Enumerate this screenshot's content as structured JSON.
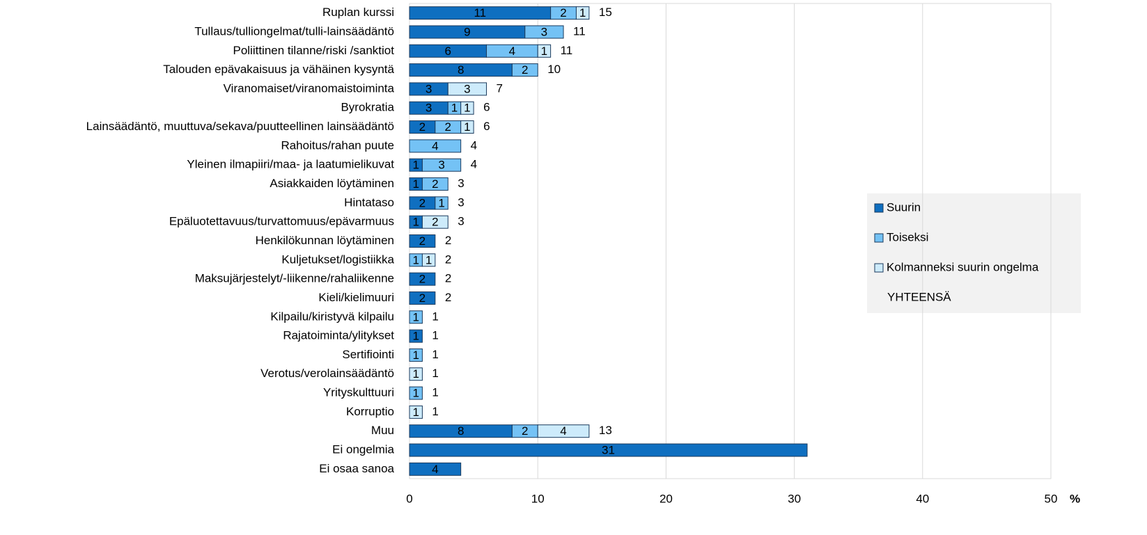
{
  "chart_data": {
    "type": "stacked-bar-horizontal",
    "categories": [
      "Ruplan kurssi",
      "Tullaus/tulliongelmat/tulli-lainsäädäntö",
      "Poliittinen tilanne/riski /sanktiot",
      "Talouden epävakaisuus ja vähäinen kysyntä",
      "Viranomaiset/viranomaistoiminta",
      "Byrokratia",
      "Lainsäädäntö, muuttuva/sekava/puutteellinen lainsäädäntö",
      "Rahoitus/rahan puute",
      "Yleinen ilmapiiri/maa- ja laatumielikuvat",
      "Asiakkaiden löytäminen",
      "Hintataso",
      "Epäluotettavuus/turvattomuus/epävarmuus",
      "Henkilökunnan löytäminen",
      "Kuljetukset/logistiikka",
      "Maksujärjestelyt/-liikenne/rahaliikenne",
      "Kieli/kielimuuri",
      "Kilpailu/kiristyvä kilpailu",
      "Rajatoiminta/ylitykset",
      "Sertifiointi",
      "Verotus/verolainsäädäntö",
      "Yrityskulttuuri",
      "Korruptio",
      "Muu",
      "Ei ongelmia",
      "Ei osaa sanoa"
    ],
    "series": [
      {
        "name": "Suurin",
        "color": "#0f6fc0",
        "values": [
          11,
          9,
          6,
          8,
          3,
          3,
          2,
          null,
          1,
          1,
          2,
          1,
          2,
          null,
          2,
          2,
          null,
          1,
          null,
          null,
          null,
          null,
          8,
          31,
          4
        ]
      },
      {
        "name": "Toiseksi",
        "color": "#74c2f5",
        "values": [
          2,
          3,
          4,
          2,
          null,
          1,
          2,
          4,
          3,
          2,
          1,
          null,
          null,
          1,
          null,
          null,
          1,
          null,
          1,
          null,
          1,
          null,
          2,
          null,
          null
        ]
      },
      {
        "name": "Kolmanneksi suurin ongelma",
        "color": "#cdebfb",
        "values": [
          1,
          null,
          1,
          null,
          3,
          1,
          1,
          null,
          null,
          null,
          null,
          2,
          null,
          1,
          null,
          null,
          null,
          null,
          null,
          1,
          null,
          1,
          4,
          null,
          null
        ]
      },
      {
        "name": "YHTEENSÄ",
        "color": "none",
        "total": true,
        "values": [
          15,
          11,
          11,
          10,
          7,
          6,
          6,
          4,
          4,
          3,
          3,
          3,
          2,
          2,
          2,
          2,
          1,
          1,
          1,
          1,
          1,
          1,
          13,
          null,
          null
        ]
      }
    ],
    "xlabel": "%",
    "xlim": [
      0,
      50
    ],
    "xticks": [
      0,
      10,
      20,
      30,
      40,
      50
    ],
    "grid": true,
    "legend": "right"
  }
}
